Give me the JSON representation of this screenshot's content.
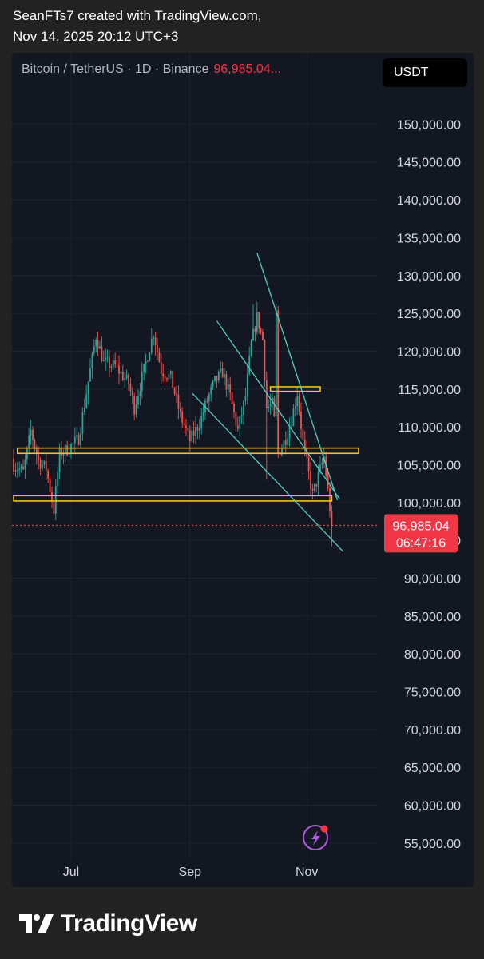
{
  "header": {
    "line1": "SeanFTs7 created with TradingView.com,",
    "line2": "Nov 14, 2025 20:12 UTC+3"
  },
  "toolbar": {
    "symbol": "Bitcoin / TetherUS · 1D · Binance",
    "price": "96,985.04...",
    "currency": "USDT"
  },
  "price_badge": {
    "price": "96,985.04",
    "countdown": "06:47:16",
    "color": "#f23645"
  },
  "footer": {
    "brand": "TradingView"
  },
  "colors": {
    "up": "#26a69a",
    "down": "#ef5350",
    "trendline": "#4dd0c1",
    "zone_border": "#f0c419",
    "background": "#131722",
    "grid": "#1e222d"
  },
  "icons": {
    "flash": "lightning-bolt-icon"
  },
  "chart_data": {
    "type": "candlestick",
    "title": "",
    "x_tick_labels": [
      "Jul",
      "Sep",
      "Nov"
    ],
    "y_ticks": [
      55000,
      60000,
      65000,
      70000,
      75000,
      80000,
      85000,
      90000,
      95000,
      100000,
      105000,
      110000,
      115000,
      120000,
      125000,
      130000,
      135000,
      140000,
      145000,
      150000
    ],
    "y_tick_labels": [
      "55,000.00",
      "60,000.00",
      "65,000.00",
      "70,000.00",
      "75,000.00",
      "80,000.00",
      "85,000.00",
      "90,000.00",
      "95,000.00",
      "100,000.00",
      "105,000.00",
      "110,000.00",
      "115,000.00",
      "120,000.00",
      "125,000.00",
      "130,000.00",
      "135,000.00",
      "140,000.00",
      "145,000.00",
      "150,000.00"
    ],
    "ylim": [
      53000,
      153000
    ],
    "date_range": [
      "2025-06-01",
      "2025-11-14"
    ],
    "last_price": 96985.04,
    "close_path": [
      [
        "2025-06-01",
        105000
      ],
      [
        "2025-06-06",
        104000
      ],
      [
        "2025-06-10",
        109500
      ],
      [
        "2025-06-14",
        105500
      ],
      [
        "2025-06-18",
        104500
      ],
      [
        "2025-06-22",
        99000
      ],
      [
        "2025-06-25",
        106500
      ],
      [
        "2025-06-30",
        107200
      ],
      [
        "2025-07-05",
        108500
      ],
      [
        "2025-07-10",
        116000
      ],
      [
        "2025-07-14",
        122000
      ],
      [
        "2025-07-18",
        118500
      ],
      [
        "2025-07-24",
        118000
      ],
      [
        "2025-07-31",
        115800
      ],
      [
        "2025-08-03",
        112500
      ],
      [
        "2025-08-08",
        117500
      ],
      [
        "2025-08-13",
        122500
      ],
      [
        "2025-08-17",
        117500
      ],
      [
        "2025-08-22",
        116500
      ],
      [
        "2025-08-27",
        111500
      ],
      [
        "2025-09-01",
        108200
      ],
      [
        "2025-09-06",
        110500
      ],
      [
        "2025-09-10",
        113500
      ],
      [
        "2025-09-14",
        116000
      ],
      [
        "2025-09-18",
        117200
      ],
      [
        "2025-09-22",
        114000
      ],
      [
        "2025-09-26",
        109500
      ],
      [
        "2025-09-30",
        114000
      ],
      [
        "2025-10-03",
        121000
      ],
      [
        "2025-10-06",
        124500
      ],
      [
        "2025-10-09",
        121500
      ],
      [
        "2025-10-11",
        112500
      ],
      [
        "2025-10-14",
        113000
      ],
      [
        "2025-10-17",
        106500
      ],
      [
        "2025-10-21",
        108500
      ],
      [
        "2025-10-24",
        111000
      ],
      [
        "2025-10-27",
        114500
      ],
      [
        "2025-10-30",
        108000
      ],
      [
        "2025-11-04",
        101000
      ],
      [
        "2025-11-07",
        103500
      ],
      [
        "2025-11-10",
        106000
      ],
      [
        "2025-11-12",
        101500
      ],
      [
        "2025-11-14",
        96985
      ]
    ],
    "extremes": {
      "high": 126200,
      "low": 97500
    },
    "horizontal_zones": [
      {
        "from": "2025-06-01",
        "to": "2025-11-14",
        "low": 100200,
        "high": 100900
      },
      {
        "from": "2025-06-03",
        "to": "2025-11-28",
        "low": 106500,
        "high": 107200
      },
      {
        "from": "2025-10-13",
        "to": "2025-11-08",
        "low": 114700,
        "high": 115300
      }
    ],
    "trendlines": [
      {
        "from": [
          "2025-09-15",
          124000
        ],
        "to": [
          "2025-11-18",
          100500
        ]
      },
      {
        "from": [
          "2025-10-06",
          133000
        ],
        "to": [
          "2025-11-17",
          100300
        ]
      },
      {
        "from": [
          "2025-09-02",
          114500
        ],
        "to": [
          "2025-11-20",
          93500
        ]
      }
    ]
  }
}
